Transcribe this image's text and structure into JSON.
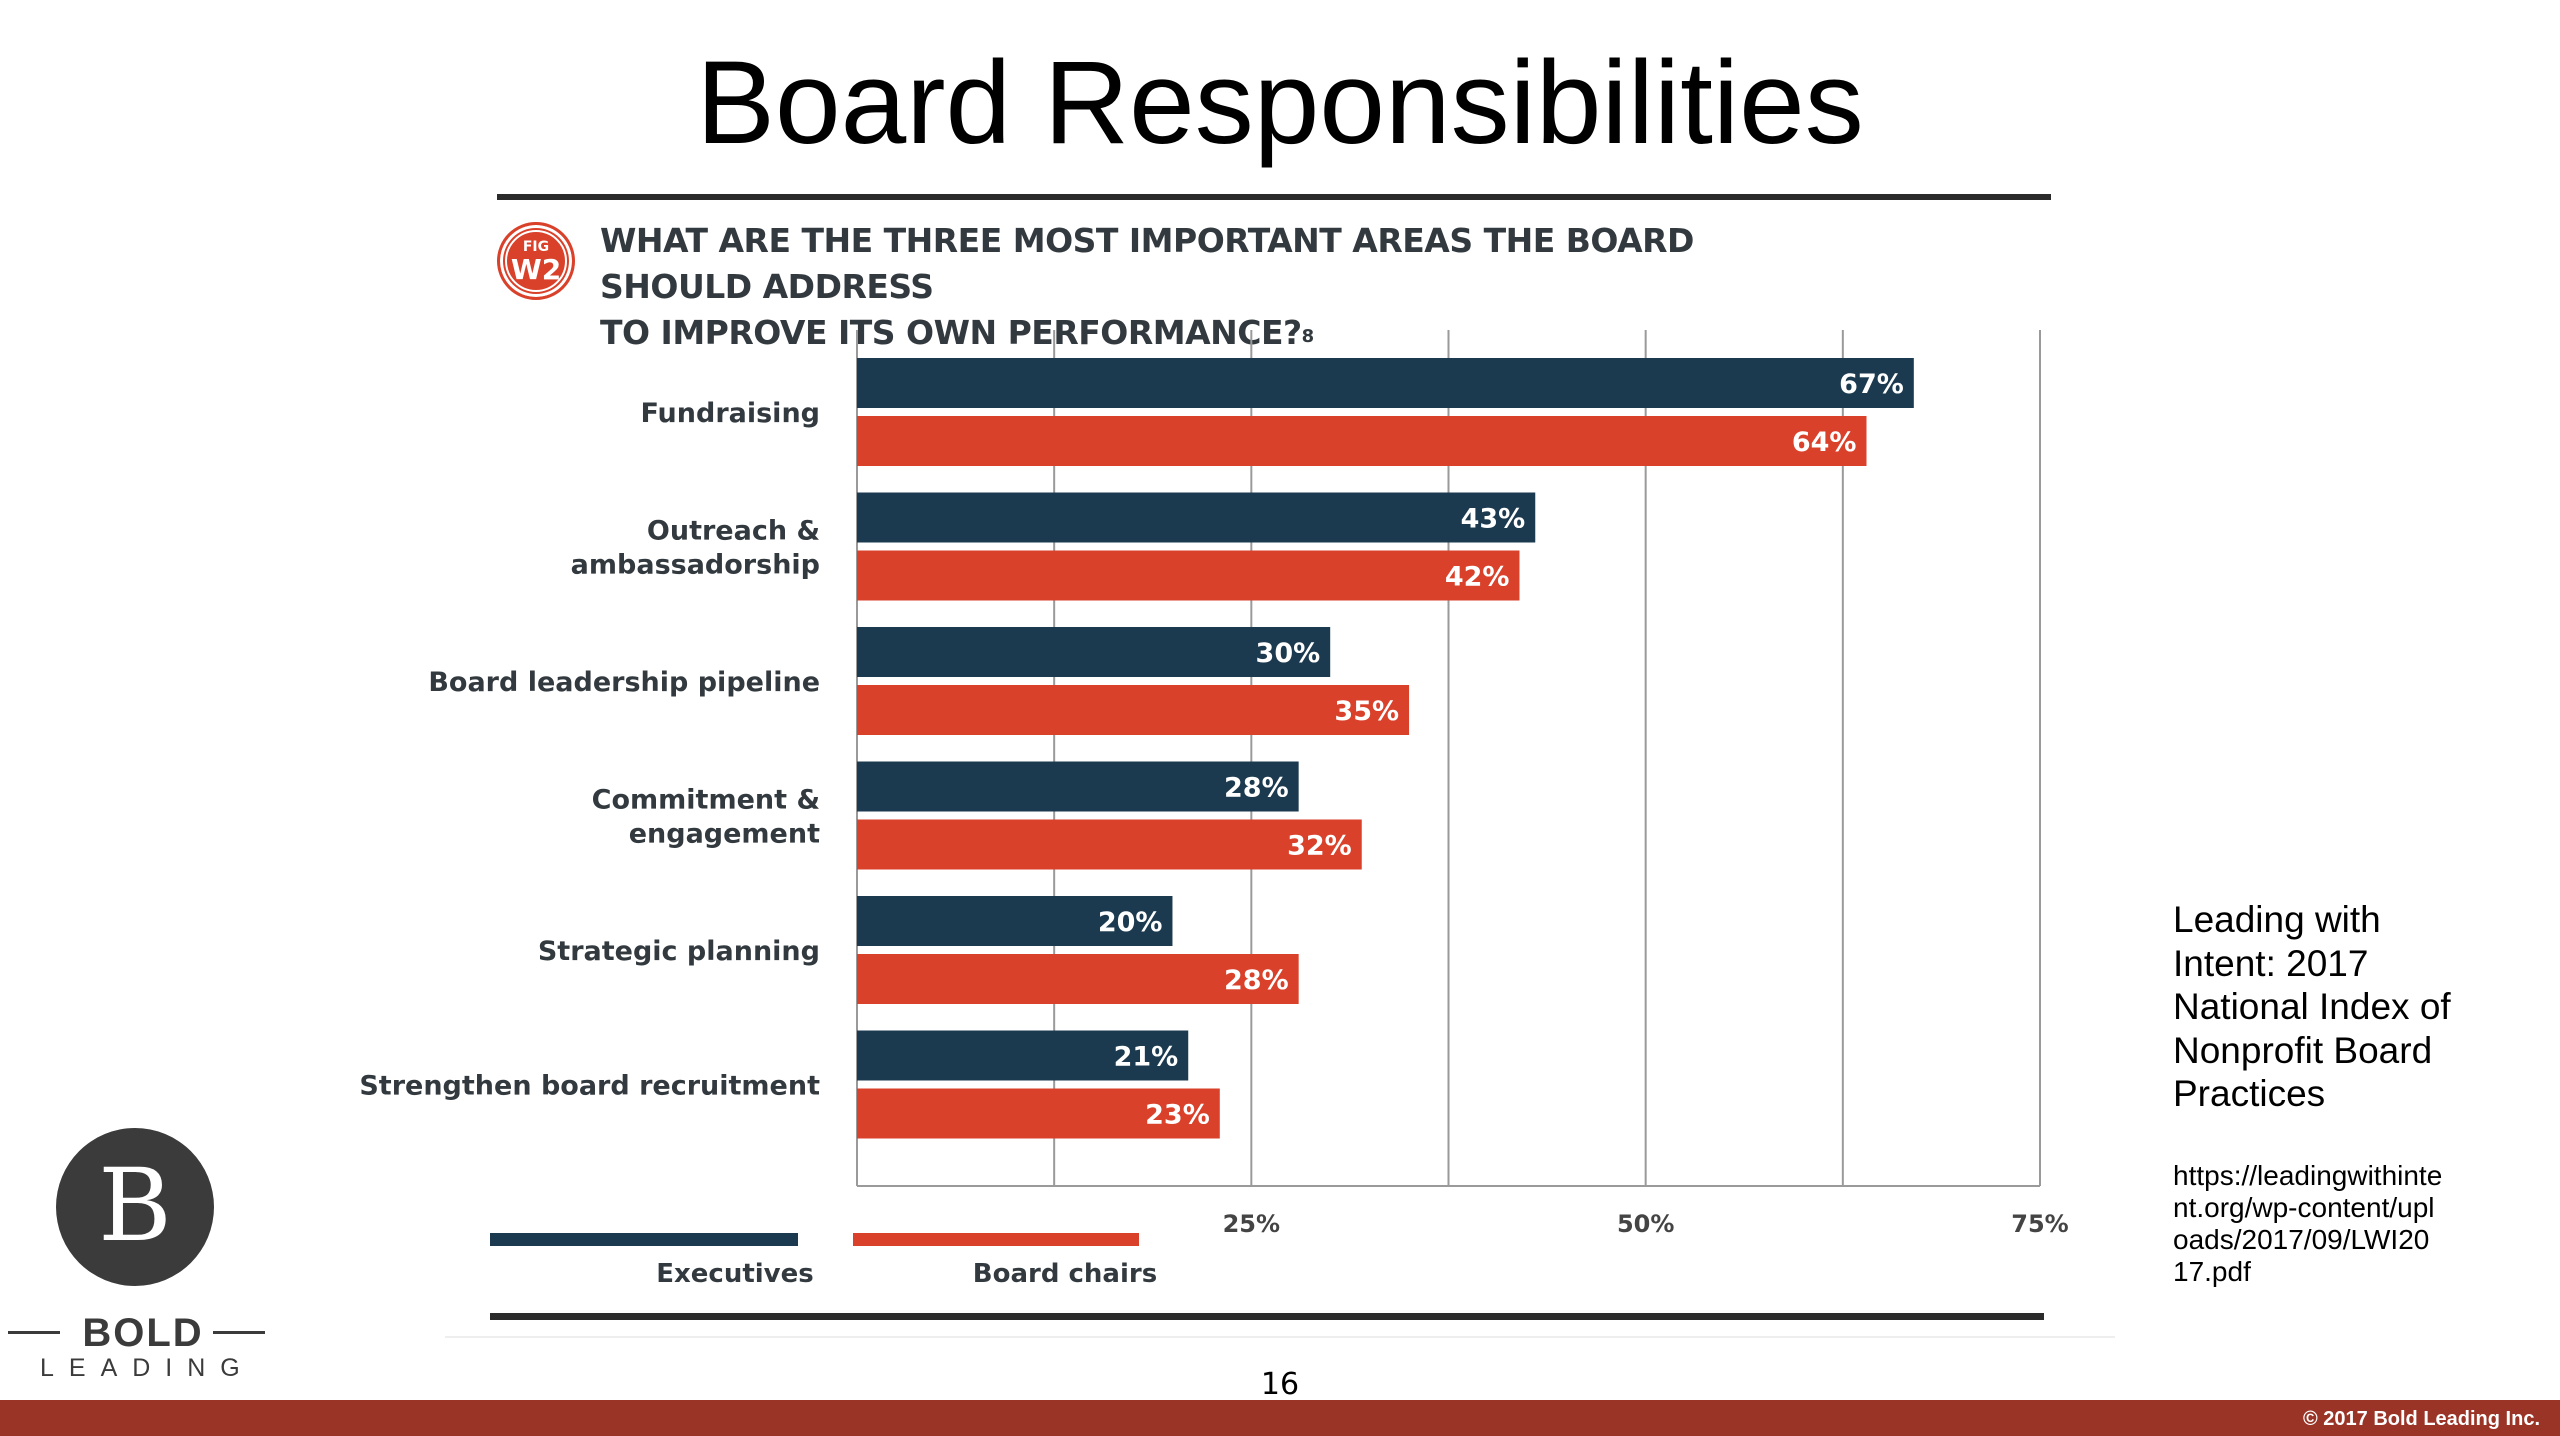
{
  "slide": {
    "title": "Board Responsibilities",
    "page_number": "16",
    "copyright": "© 2017 Bold Leading Inc."
  },
  "figure": {
    "badge_top": "FIG",
    "badge_bottom": "W2",
    "question_line1": "WHAT ARE THE THREE MOST IMPORTANT AREAS THE BOARD SHOULD ADDRESS",
    "question_line2": "TO IMPROVE ITS OWN PERFORMANCE?",
    "footnote": "8"
  },
  "chart_data": {
    "type": "bar",
    "orientation": "horizontal",
    "categories": [
      [
        "Fundraising"
      ],
      [
        "Outreach &",
        "ambassadorship"
      ],
      [
        "Board leadership pipeline"
      ],
      [
        "Commitment &",
        "engagement"
      ],
      [
        "Strategic planning"
      ],
      [
        "Strengthen board recruitment"
      ]
    ],
    "series": [
      {
        "name": "Executives",
        "color": "#1b3a4f",
        "values": [
          67,
          43,
          30,
          28,
          20,
          21
        ],
        "labels": [
          "67%",
          "43%",
          "30%",
          "28%",
          "20%",
          "21%"
        ]
      },
      {
        "name": "Board chairs",
        "color": "#d9412b",
        "values": [
          64,
          42,
          35,
          32,
          28,
          23
        ],
        "labels": [
          "64%",
          "42%",
          "35%",
          "32%",
          "28%",
          "23%"
        ]
      }
    ],
    "xlim": [
      0,
      75
    ],
    "x_ticks": [
      25,
      50,
      75
    ],
    "x_tick_labels": [
      "25%",
      "50%",
      "75%"
    ],
    "grid": true,
    "legend_position": "bottom-left"
  },
  "citation": {
    "text": "Leading with Intent: 2017 National Index of Nonprofit Board Practices",
    "url": "https://leadingwithintent.org/wp-content/uploads/2017/09/LWI2017.pdf"
  },
  "logo": {
    "mark": "B",
    "word1": "BOLD",
    "word2": "LEADING"
  }
}
